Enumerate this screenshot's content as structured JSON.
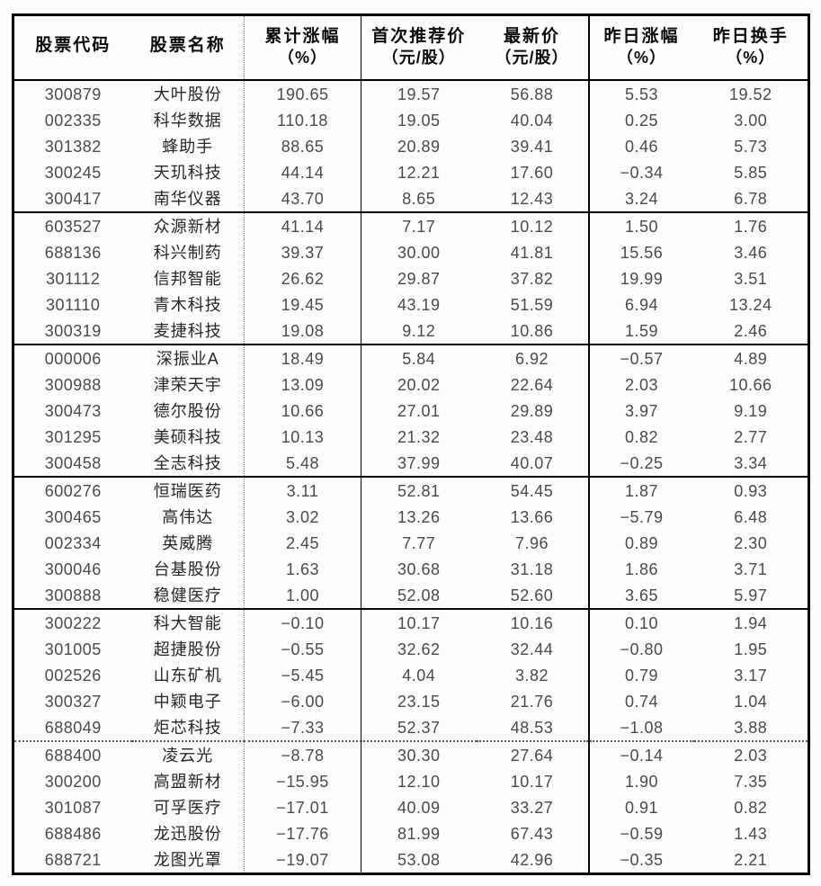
{
  "table": {
    "columns": [
      {
        "key": "stock-code",
        "label": "股票代码",
        "unit": ""
      },
      {
        "key": "stock-name",
        "label": "股票名称",
        "unit": ""
      },
      {
        "key": "cum-gain",
        "label": "累计涨幅",
        "unit": "（%）"
      },
      {
        "key": "first-rec-price",
        "label": "首次推荐价",
        "unit": "（元/股）"
      },
      {
        "key": "latest-price",
        "label": "最新价",
        "unit": "（元/股）"
      },
      {
        "key": "yday-gain",
        "label": "昨日涨幅",
        "unit": "（%）"
      },
      {
        "key": "yday-turnover",
        "label": "昨日换手",
        "unit": "（%）"
      }
    ],
    "groups": [
      {
        "rows": [
          [
            "300879",
            "大叶股份",
            "190.65",
            "19.57",
            "56.88",
            "5.53",
            "19.52"
          ],
          [
            "002335",
            "科华数据",
            "110.18",
            "19.05",
            "40.04",
            "0.25",
            "3.00"
          ],
          [
            "301382",
            "蜂助手",
            "88.65",
            "20.89",
            "39.41",
            "0.46",
            "5.73"
          ],
          [
            "300245",
            "天玑科技",
            "44.14",
            "12.21",
            "17.60",
            "−0.34",
            "5.85"
          ],
          [
            "300417",
            "南华仪器",
            "43.70",
            "8.65",
            "12.43",
            "3.24",
            "6.78"
          ]
        ]
      },
      {
        "rows": [
          [
            "603527",
            "众源新材",
            "41.14",
            "7.17",
            "10.12",
            "1.50",
            "1.76"
          ],
          [
            "688136",
            "科兴制药",
            "39.37",
            "30.00",
            "41.81",
            "15.56",
            "3.46"
          ],
          [
            "301112",
            "信邦智能",
            "26.62",
            "29.87",
            "37.82",
            "19.99",
            "3.51"
          ],
          [
            "301110",
            "青木科技",
            "19.45",
            "43.19",
            "51.59",
            "6.94",
            "13.24"
          ],
          [
            "300319",
            "麦捷科技",
            "19.08",
            "9.12",
            "10.86",
            "1.59",
            "2.46"
          ]
        ]
      },
      {
        "rows": [
          [
            "000006",
            "深振业A",
            "18.49",
            "5.84",
            "6.92",
            "−0.57",
            "4.89"
          ],
          [
            "300988",
            "津荣天宇",
            "13.09",
            "20.02",
            "22.64",
            "2.03",
            "10.66"
          ],
          [
            "300473",
            "德尔股份",
            "10.66",
            "27.01",
            "29.89",
            "3.97",
            "9.19"
          ],
          [
            "301295",
            "美硕科技",
            "10.13",
            "21.32",
            "23.48",
            "0.82",
            "2.77"
          ],
          [
            "300458",
            "全志科技",
            "5.48",
            "37.99",
            "40.07",
            "−0.25",
            "3.34"
          ]
        ]
      },
      {
        "rows": [
          [
            "600276",
            "恒瑞医药",
            "3.11",
            "52.81",
            "54.45",
            "1.87",
            "0.93"
          ],
          [
            "300465",
            "高伟达",
            "3.02",
            "13.26",
            "13.66",
            "−5.79",
            "6.48"
          ],
          [
            "002334",
            "英威腾",
            "2.45",
            "7.77",
            "7.96",
            "0.89",
            "2.30"
          ],
          [
            "300046",
            "台基股份",
            "1.63",
            "30.68",
            "31.18",
            "1.86",
            "3.71"
          ],
          [
            "300888",
            "稳健医疗",
            "1.00",
            "52.08",
            "52.60",
            "3.65",
            "5.97"
          ]
        ]
      },
      {
        "rows": [
          [
            "300222",
            "科大智能",
            "−0.10",
            "10.17",
            "10.16",
            "0.10",
            "1.94"
          ],
          [
            "301005",
            "超捷股份",
            "−0.55",
            "32.62",
            "32.44",
            "−0.80",
            "1.95"
          ],
          [
            "002526",
            "山东矿机",
            "−5.45",
            "4.04",
            "3.82",
            "0.79",
            "3.17"
          ],
          [
            "300327",
            "中颖电子",
            "−6.00",
            "23.15",
            "21.76",
            "0.74",
            "1.04"
          ],
          [
            "688049",
            "炬芯科技",
            "−7.33",
            "52.37",
            "48.53",
            "−1.08",
            "3.88"
          ]
        ]
      },
      {
        "rows": [
          [
            "688400",
            "凌云光",
            "−8.78",
            "30.30",
            "27.64",
            "−0.14",
            "2.03"
          ],
          [
            "300200",
            "高盟新材",
            "−15.95",
            "12.10",
            "10.17",
            "1.90",
            "7.35"
          ],
          [
            "301087",
            "可孚医疗",
            "−17.01",
            "40.09",
            "33.27",
            "0.91",
            "0.82"
          ],
          [
            "688486",
            "龙迅股份",
            "−17.76",
            "81.99",
            "67.43",
            "−0.59",
            "1.43"
          ],
          [
            "688721",
            "龙图光罩",
            "−19.07",
            "53.08",
            "42.96",
            "−0.35",
            "2.21"
          ]
        ]
      }
    ]
  }
}
